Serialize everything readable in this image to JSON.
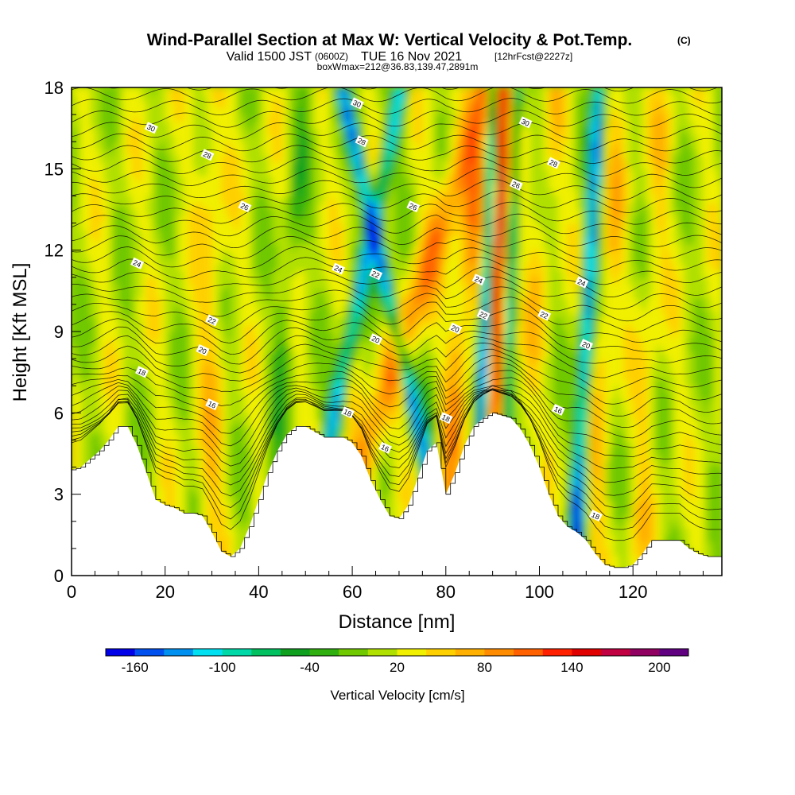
{
  "title": {
    "main": "Wind-Parallel Section at Max W: Vertical Velocity & Pot.Temp.",
    "copyright": "(C)",
    "valid_prefix": "Valid 1500 JST",
    "valid_zulu": "(0600Z)",
    "valid_suffix": "TUE 16 Nov 2021",
    "forecast": "[12hrFcst@2227z]",
    "box": "boxWmax=212@36.83,139.47,2891m"
  },
  "colorbar": {
    "label": "Vertical Velocity [cm/s]",
    "tick_labels": [
      "-160",
      "-100",
      "-40",
      "20",
      "80",
      "140",
      "200"
    ],
    "tick_values": [
      -160,
      -100,
      -40,
      20,
      80,
      140,
      200
    ],
    "bounds": [
      -180,
      -160,
      -140,
      -120,
      -100,
      -80,
      -60,
      -40,
      -20,
      0,
      20,
      40,
      60,
      80,
      100,
      120,
      140,
      160,
      180,
      200,
      220
    ],
    "colors": [
      "#0000e8",
      "#0050f0",
      "#0090f0",
      "#00e0f0",
      "#00d8a8",
      "#00c060",
      "#10a020",
      "#30b010",
      "#70c800",
      "#b0e000",
      "#f0f000",
      "#ffd000",
      "#ffb000",
      "#ff8c00",
      "#ff6000",
      "#ff2000",
      "#e00000",
      "#c00040",
      "#900060",
      "#600080"
    ]
  },
  "chart_data": {
    "type": "heatmap",
    "title": "Wind-Parallel Section at Max W: Vertical Velocity & Pot.Temp.",
    "xlabel": "Distance [nm]",
    "ylabel": "Height [Kft MSL]",
    "xlim": [
      0,
      139
    ],
    "ylim": [
      0,
      18
    ],
    "x_ticks": [
      0,
      20,
      40,
      60,
      80,
      100,
      120
    ],
    "x_tick_labels": [
      "0",
      "20",
      "40",
      "60",
      "80",
      "100",
      "120"
    ],
    "y_ticks": [
      0,
      3,
      6,
      9,
      12,
      15,
      18
    ],
    "y_tick_labels": [
      "0",
      "3",
      "6",
      "9",
      "12",
      "15",
      "18"
    ],
    "fill_variable": "Vertical Velocity [cm/s]",
    "contour_variable": "Potential Temperature",
    "terrain_profile": {
      "x": [
        0,
        2,
        4,
        6,
        8,
        10,
        12,
        14,
        16,
        18,
        20,
        22,
        24,
        26,
        28,
        30,
        32,
        34,
        36,
        38,
        40,
        42,
        44,
        46,
        48,
        50,
        52,
        54,
        56,
        58,
        60,
        62,
        64,
        66,
        68,
        70,
        72,
        74,
        76,
        78,
        80,
        82,
        84,
        86,
        88,
        90,
        92,
        94,
        96,
        98,
        100,
        102,
        104,
        106,
        108,
        110,
        112,
        114,
        116,
        118,
        120,
        122,
        124,
        126,
        128,
        130,
        132,
        134,
        136,
        138,
        139
      ],
      "height_kft": [
        3.9,
        4.0,
        4.3,
        4.6,
        5.0,
        5.5,
        5.5,
        4.8,
        3.8,
        2.8,
        2.6,
        2.5,
        2.3,
        2.3,
        2.2,
        1.6,
        0.9,
        0.7,
        1.0,
        1.8,
        2.8,
        3.8,
        4.6,
        5.2,
        5.5,
        5.5,
        5.3,
        5.1,
        5.1,
        5.1,
        4.9,
        4.4,
        3.5,
        2.8,
        2.2,
        2.1,
        2.6,
        3.6,
        4.6,
        4.9,
        3.0,
        3.8,
        4.8,
        5.5,
        5.8,
        6.0,
        5.9,
        5.8,
        5.4,
        4.8,
        4.0,
        3.0,
        2.2,
        1.8,
        1.6,
        1.3,
        0.8,
        0.4,
        0.3,
        0.3,
        0.4,
        0.8,
        1.3,
        1.3,
        1.3,
        1.3,
        1.0,
        0.8,
        0.7,
        0.7,
        0.7
      ]
    },
    "updraft_maximum": {
      "value_cm_s": 212,
      "x_nm": 91,
      "height_kft": 9.5
    },
    "velocity_features": [
      {
        "x_nm": 66,
        "height_kft": 11,
        "w_cm_s": -130
      },
      {
        "x_nm": 57,
        "height_kft": 6,
        "w_cm_s": -110
      },
      {
        "x_nm": 77,
        "height_kft": 5.5,
        "w_cm_s": -150
      },
      {
        "x_nm": 88,
        "height_kft": 8,
        "w_cm_s": -170
      },
      {
        "x_nm": 109,
        "height_kft": 2.5,
        "w_cm_s": -165
      },
      {
        "x_nm": 60,
        "height_kft": 10,
        "w_cm_s": 70
      },
      {
        "x_nm": 82,
        "height_kft": 8,
        "w_cm_s": 60
      },
      {
        "x_nm": 113,
        "height_kft": 9,
        "w_cm_s": 40
      }
    ],
    "isentrope_labels": [
      {
        "text": "30",
        "x_nm": 17,
        "height_kft": 16.5
      },
      {
        "text": "28",
        "x_nm": 29,
        "height_kft": 15.5
      },
      {
        "text": "26",
        "x_nm": 37,
        "height_kft": 13.6
      },
      {
        "text": "24",
        "x_nm": 14,
        "height_kft": 11.5
      },
      {
        "text": "22",
        "x_nm": 30,
        "height_kft": 9.4
      },
      {
        "text": "20",
        "x_nm": 28,
        "height_kft": 8.3
      },
      {
        "text": "18",
        "x_nm": 15,
        "height_kft": 7.5
      },
      {
        "text": "16",
        "x_nm": 30,
        "height_kft": 6.3
      },
      {
        "text": "30",
        "x_nm": 61,
        "height_kft": 17.4
      },
      {
        "text": "28",
        "x_nm": 62,
        "height_kft": 16.0
      },
      {
        "text": "26",
        "x_nm": 73,
        "height_kft": 13.6
      },
      {
        "text": "24",
        "x_nm": 57,
        "height_kft": 11.3
      },
      {
        "text": "22",
        "x_nm": 65,
        "height_kft": 11.1
      },
      {
        "text": "20",
        "x_nm": 65,
        "height_kft": 8.7
      },
      {
        "text": "18",
        "x_nm": 59,
        "height_kft": 6.0
      },
      {
        "text": "16",
        "x_nm": 67,
        "height_kft": 4.7
      },
      {
        "text": "24",
        "x_nm": 87,
        "height_kft": 10.9
      },
      {
        "text": "22",
        "x_nm": 88,
        "height_kft": 9.6
      },
      {
        "text": "20",
        "x_nm": 82,
        "height_kft": 9.1
      },
      {
        "text": "18",
        "x_nm": 80,
        "height_kft": 5.8
      },
      {
        "text": "30",
        "x_nm": 97,
        "height_kft": 16.7
      },
      {
        "text": "28",
        "x_nm": 103,
        "height_kft": 15.2
      },
      {
        "text": "26",
        "x_nm": 95,
        "height_kft": 14.4
      },
      {
        "text": "22",
        "x_nm": 101,
        "height_kft": 9.6
      },
      {
        "text": "24",
        "x_nm": 109,
        "height_kft": 10.8
      },
      {
        "text": "20",
        "x_nm": 110,
        "height_kft": 8.5
      },
      {
        "text": "16",
        "x_nm": 104,
        "height_kft": 6.1
      },
      {
        "text": "18",
        "x_nm": 112,
        "height_kft": 2.2
      }
    ]
  }
}
